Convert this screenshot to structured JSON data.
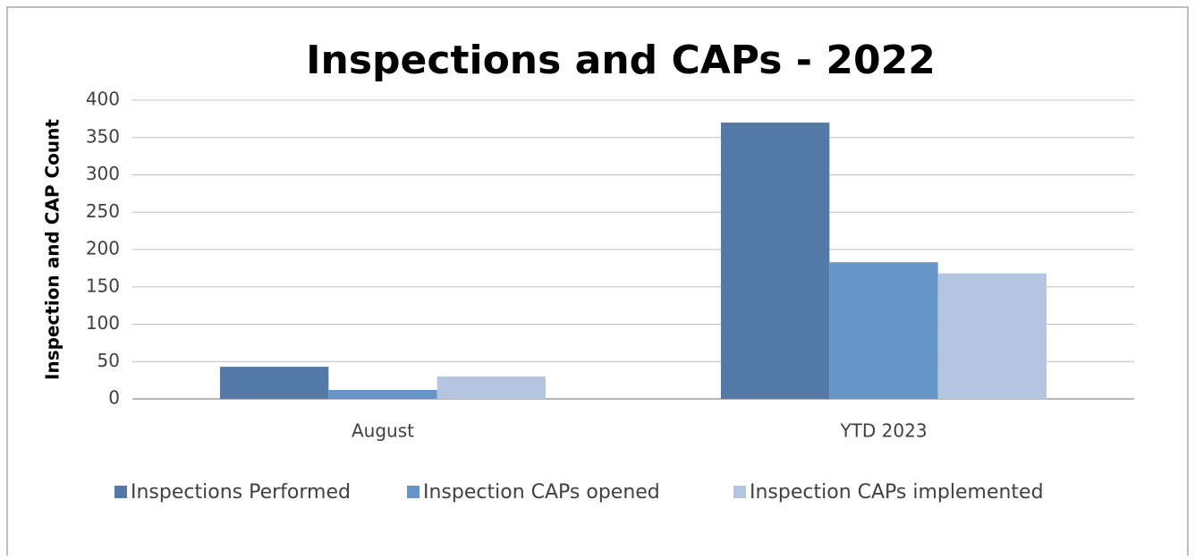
{
  "chart_data": {
    "type": "bar",
    "title": "Inspections and CAPs - 2022",
    "y_label": "Inspection and CAP Count",
    "categories": [
      "August",
      "YTD 2023"
    ],
    "series": [
      {
        "name": "Inspections Performed",
        "color": "#5479a7",
        "values": [
          43,
          370
        ]
      },
      {
        "name": "Inspection CAPs opened",
        "color": "#6696c8",
        "values": [
          12,
          183
        ]
      },
      {
        "name": "Inspection CAPs implemented",
        "color": "#b3c5e0",
        "values": [
          30,
          168
        ]
      }
    ],
    "ylim": [
      0,
      400
    ],
    "yticks": [
      0,
      50,
      100,
      150,
      200,
      250,
      300,
      350,
      400
    ],
    "grid": true,
    "legend": "bottom"
  }
}
